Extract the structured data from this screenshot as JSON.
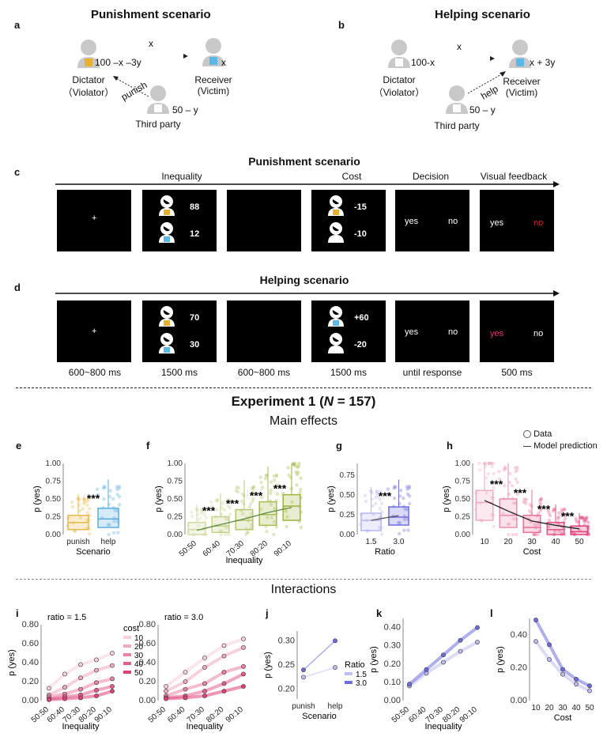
{
  "panels": {
    "a": {
      "letter": "a",
      "title": "Punishment scenario",
      "dictator_amount": "100 –x –3y",
      "dictator_label": "Dictator",
      "dictator_sub": "（Violator）",
      "transfer": "x",
      "receiver_amount": "x",
      "receiver_label": "Receiver",
      "receiver_sub": "(Victim)",
      "action": "punish",
      "third_amount": "50 – y",
      "third_label": "Third party"
    },
    "b": {
      "letter": "b",
      "title": "Helping scenario",
      "dictator_amount": "100-x",
      "dictator_label": "Dictator",
      "dictator_sub": "（Violator）",
      "transfer": "x",
      "receiver_amount": "x + 3y",
      "receiver_label": "Receiver",
      "receiver_sub": "(Victim)",
      "action": "help",
      "third_amount": "50 – y",
      "third_label": "Third party"
    },
    "c": {
      "letter": "c",
      "title": "Punishment scenario",
      "stages": [
        "Inequality",
        "Cost",
        "Decision",
        "Visual feedback"
      ],
      "fixation": "+",
      "top_value": "88",
      "bottom_value": "12",
      "cost_top": "-15",
      "cost_bottom": "-10",
      "yes": "yes",
      "no": "no",
      "fb_yes": "yes",
      "fb_no": "no"
    },
    "d": {
      "letter": "d",
      "title": "Helping scenario",
      "fixation": "+",
      "top_value": "70",
      "bottom_value": "30",
      "cost_top": "+60",
      "cost_bottom": "-20",
      "yes": "yes",
      "no": "no",
      "fb_yes": "yes",
      "fb_no": "no",
      "timings": [
        "600~800 ms",
        "1500 ms",
        "600~800 ms",
        "1500 ms",
        "until response",
        "500 ms"
      ]
    }
  },
  "experiment": {
    "title_pre": "Experiment 1 (",
    "title_n": "N",
    "title_post": " = 157)",
    "main_effects": "Main effects",
    "interactions": "Interactions"
  },
  "legend": {
    "data": "Data",
    "model": "Model prediction"
  },
  "colors": {
    "punish": "#e8b84a",
    "help": "#5aaee0",
    "inequality": "#9fb23a",
    "ratio": "#6d6de0",
    "cost": "#e0407a",
    "model": "#444444"
  },
  "chart_data": [
    {
      "panel": "e",
      "type": "box",
      "ylabel": "p (yes)",
      "xlabel": "Scenario",
      "ylim": [
        0,
        1
      ],
      "yticks": [
        "0.00",
        "0.25",
        "0.50",
        "0.75",
        "1.00"
      ],
      "categories": [
        "punish",
        "help"
      ],
      "medians": [
        0.17,
        0.22
      ],
      "q1": [
        0.07,
        0.1
      ],
      "q3": [
        0.27,
        0.37
      ],
      "sig": "***"
    },
    {
      "panel": "f",
      "type": "box",
      "ylabel": "p (yes)",
      "xlabel": "Inequality",
      "ylim": [
        0,
        1
      ],
      "yticks": [
        "0.00",
        "0.25",
        "0.50",
        "0.75",
        "1.00"
      ],
      "categories": [
        "50:50",
        "60:40",
        "70:30",
        "80:20",
        "90:10"
      ],
      "medians": [
        0.07,
        0.12,
        0.2,
        0.28,
        0.4
      ],
      "q1": [
        0.0,
        0.03,
        0.07,
        0.13,
        0.2
      ],
      "q3": [
        0.17,
        0.25,
        0.35,
        0.46,
        0.56
      ],
      "model": [
        0.06,
        0.14,
        0.22,
        0.31,
        0.38
      ],
      "sig": [
        "***",
        "***",
        "***",
        "***"
      ]
    },
    {
      "panel": "g",
      "type": "box",
      "ylabel": "p (yes)",
      "xlabel": "Ratio",
      "ylim": [
        0,
        0.9
      ],
      "yticks": [
        "0.00",
        "0.25",
        "0.50",
        "0.75"
      ],
      "categories": [
        "1.5",
        "3.0"
      ],
      "medians": [
        0.18,
        0.22
      ],
      "q1": [
        0.05,
        0.12
      ],
      "q3": [
        0.27,
        0.35
      ],
      "model": [
        0.18,
        0.24
      ],
      "sig": "***"
    },
    {
      "panel": "h",
      "type": "box",
      "ylabel": "p (yes)",
      "xlabel": "Cost",
      "ylim": [
        0,
        1
      ],
      "yticks": [
        "0.00",
        "0.25",
        "0.50",
        "0.75",
        "1.00"
      ],
      "categories": [
        "10",
        "20",
        "30",
        "40",
        "50"
      ],
      "medians": [
        0.45,
        0.27,
        0.1,
        0.07,
        0.04
      ],
      "q1": [
        0.2,
        0.1,
        0.03,
        0.0,
        0.0
      ],
      "q3": [
        0.62,
        0.5,
        0.27,
        0.17,
        0.12
      ],
      "model": [
        0.48,
        0.33,
        0.19,
        0.13,
        0.08
      ],
      "sig": [
        "***",
        "***",
        "***",
        "***"
      ]
    },
    {
      "panel": "i",
      "type": "line",
      "subtitle": "ratio = 1.5",
      "ylabel": "p (yes)",
      "xlabel": "Inequality",
      "ylim": [
        0,
        0.8
      ],
      "yticks": [
        "0.00",
        "0.20",
        "0.40",
        "0.60",
        "0.80"
      ],
      "x": [
        "50:50",
        "60:40",
        "70:30",
        "80:20",
        "90:10"
      ],
      "legend_title": "cost",
      "series": [
        {
          "name": "10",
          "values": [
            0.13,
            0.28,
            0.38,
            0.43,
            0.5
          ]
        },
        {
          "name": "20",
          "values": [
            0.06,
            0.14,
            0.24,
            0.32,
            0.37
          ]
        },
        {
          "name": "30",
          "values": [
            0.04,
            0.07,
            0.12,
            0.19,
            0.23
          ]
        },
        {
          "name": "40",
          "values": [
            0.02,
            0.04,
            0.06,
            0.11,
            0.15
          ]
        },
        {
          "name": "50",
          "values": [
            0.01,
            0.02,
            0.03,
            0.05,
            0.1
          ]
        }
      ]
    },
    {
      "panel": "i2",
      "type": "line",
      "subtitle": "ratio = 3.0",
      "ylabel": "",
      "xlabel": "Inequality",
      "ylim": [
        0,
        0.8
      ],
      "yticks": [
        "0.00",
        "0.20",
        "0.40",
        "0.60",
        "0.80"
      ],
      "x": [
        "50:50",
        "60:40",
        "70:30",
        "80:20",
        "90:10"
      ],
      "series": [
        {
          "name": "10",
          "values": [
            0.15,
            0.3,
            0.45,
            0.58,
            0.65
          ]
        },
        {
          "name": "20",
          "values": [
            0.1,
            0.2,
            0.35,
            0.47,
            0.56
          ]
        },
        {
          "name": "30",
          "values": [
            0.05,
            0.12,
            0.18,
            0.3,
            0.36
          ]
        },
        {
          "name": "40",
          "values": [
            0.03,
            0.05,
            0.1,
            0.18,
            0.28
          ]
        },
        {
          "name": "50",
          "values": [
            0.02,
            0.03,
            0.05,
            0.1,
            0.15
          ]
        }
      ]
    },
    {
      "panel": "j",
      "type": "line",
      "ylabel": "p (yes)",
      "xlabel": "Scenario",
      "ylim": [
        0.18,
        0.32
      ],
      "yticks": [
        "0.20",
        "0.25",
        "0.30"
      ],
      "x": [
        "punish",
        "help"
      ],
      "legend_title": "Ratio",
      "series": [
        {
          "name": "1.5",
          "values": [
            0.225,
            0.245
          ]
        },
        {
          "name": "3.0",
          "values": [
            0.24,
            0.3
          ]
        }
      ]
    },
    {
      "panel": "k",
      "type": "line",
      "ylabel": "p (yes)",
      "xlabel": "Inequality",
      "ylim": [
        0,
        0.45
      ],
      "yticks": [
        "0.00",
        "0.10",
        "0.20",
        "0.30",
        "0.40"
      ],
      "x": [
        "50:50",
        "60:40",
        "70:30",
        "80:20",
        "90:10"
      ],
      "series": [
        {
          "name": "1.5",
          "values": [
            0.08,
            0.15,
            0.21,
            0.27,
            0.32
          ]
        },
        {
          "name": "3.0",
          "values": [
            0.09,
            0.17,
            0.25,
            0.33,
            0.4
          ]
        }
      ]
    },
    {
      "panel": "l",
      "type": "line",
      "ylabel": "p (yes)",
      "xlabel": "Cost",
      "ylim": [
        0,
        0.5
      ],
      "yticks": [
        "0.00",
        "0.20",
        "0.40"
      ],
      "x": [
        "10",
        "20",
        "30",
        "40",
        "50"
      ],
      "series": [
        {
          "name": "1.5",
          "values": [
            0.36,
            0.25,
            0.16,
            0.1,
            0.06
          ]
        },
        {
          "name": "3.0",
          "values": [
            0.49,
            0.34,
            0.19,
            0.13,
            0.09
          ]
        }
      ]
    }
  ]
}
